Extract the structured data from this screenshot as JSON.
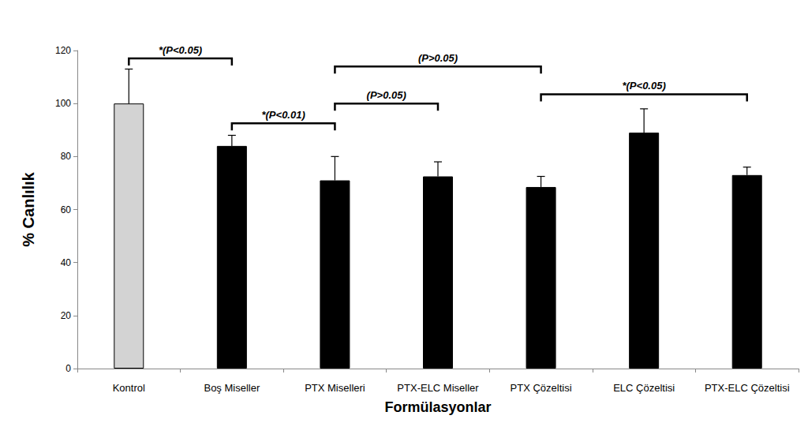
{
  "chart_data": {
    "type": "bar",
    "x_label": "Formülasyonlar",
    "y_label": "% Canlılık",
    "categories": [
      "Kontrol",
      "Boş Miseller",
      "PTX Miselleri",
      "PTX-ELC Miseller",
      "PTX Çözeltisi",
      "ELC Çözeltisi",
      "PTX-ELC Çözeltisi"
    ],
    "values": [
      100,
      84,
      71,
      72.5,
      68.5,
      89,
      73
    ],
    "errors": [
      13,
      4,
      9,
      5.5,
      4,
      9,
      3
    ],
    "colors": [
      "#d3d3d3",
      "#000000",
      "#000000",
      "#000000",
      "#000000",
      "#000000",
      "#000000"
    ],
    "ylim": [
      0,
      120
    ],
    "yticks": [
      0,
      20,
      40,
      60,
      80,
      100,
      120
    ],
    "grid": false,
    "annotations": [
      {
        "text": "*(P<0.05)",
        "from": 0,
        "to": 1,
        "y": 117
      },
      {
        "text": "*(P<0.01)",
        "from": 1,
        "to": 2,
        "y": 92.5
      },
      {
        "text": "(P>0.05)",
        "from": 2,
        "to": 3,
        "y": 100
      },
      {
        "text": "(P>0.05)",
        "from": 2,
        "to": 4,
        "y": 114
      },
      {
        "text": "*(P<0.05)",
        "from": 4,
        "to": 6,
        "y": 103.5
      }
    ]
  }
}
